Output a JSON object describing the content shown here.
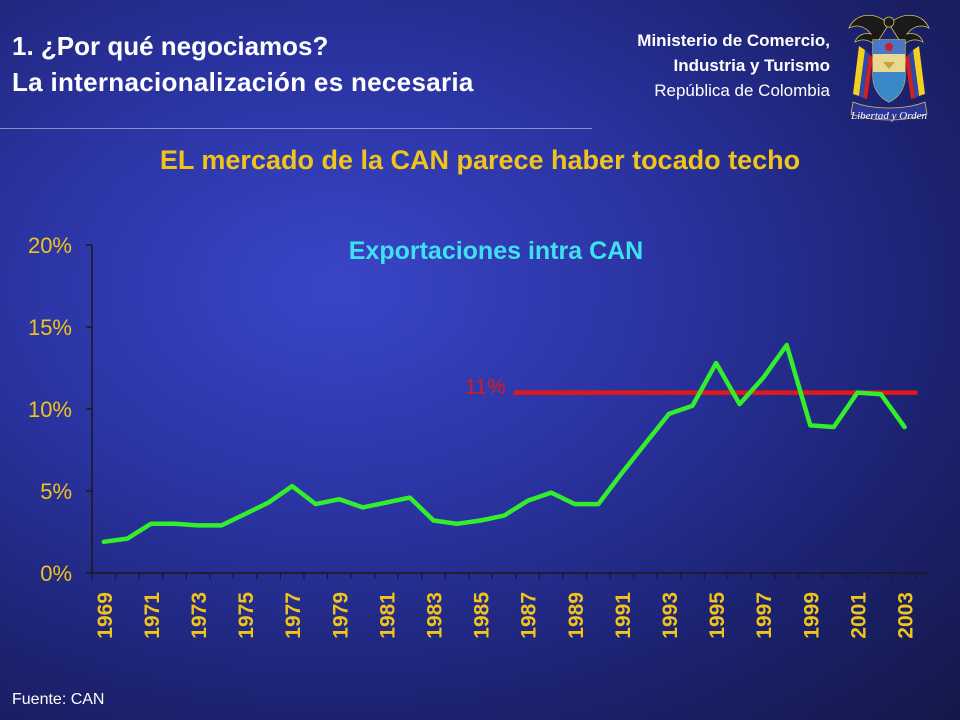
{
  "header": {
    "title_line1": "1. ¿Por qué negociamos?",
    "title_line2": "La internacionalización es necesaria",
    "ministry_line1": "Ministerio de Comercio,",
    "ministry_line2": "Industria y Turismo",
    "ministry_line3": "República de Colombia",
    "crest_motto": "Libertad y Orden"
  },
  "subtitle": "EL mercado de la CAN parece haber tocado techo",
  "source": "Fuente: CAN",
  "colors": {
    "series": "#33ee2a",
    "reference_line": "#e01818",
    "subtitle": "#f0c41a",
    "chart_title": "#3fe0f2",
    "axis_labels": "#f0c41a"
  },
  "chart_data": {
    "type": "line",
    "title": "Exportaciones intra CAN",
    "xlabel": "",
    "ylabel": "",
    "x_tick_labels": [
      "1969",
      "1971",
      "1973",
      "1975",
      "1977",
      "1979",
      "1981",
      "1983",
      "1985",
      "1987",
      "1989",
      "1991",
      "1993",
      "1995",
      "1997",
      "1999",
      "2001",
      "2003"
    ],
    "y_tick_labels": [
      "0%",
      "5%",
      "10%",
      "15%",
      "20%"
    ],
    "ylim": [
      0,
      20
    ],
    "grid": false,
    "series": [
      {
        "x": [
          1969,
          1970,
          1971,
          1972,
          1973,
          1974,
          1975,
          1976,
          1977,
          1978,
          1979,
          1980,
          1981,
          1982,
          1983,
          1984,
          1985,
          1986,
          1987,
          1988,
          1989,
          1990,
          1991,
          1992,
          1993,
          1994,
          1995,
          1996,
          1997,
          1998,
          1999,
          2000,
          2001,
          2002,
          2003
        ],
        "values": [
          1.9,
          2.1,
          3.0,
          3.0,
          2.9,
          2.9,
          3.6,
          4.3,
          5.3,
          4.2,
          4.5,
          4.0,
          4.3,
          4.6,
          3.2,
          3.0,
          3.2,
          3.5,
          4.4,
          4.9,
          4.2,
          4.2,
          6.1,
          7.9,
          9.7,
          10.2,
          12.8,
          10.3,
          11.9,
          13.9,
          9.0,
          8.9,
          11.0,
          10.9,
          8.9
        ]
      }
    ],
    "annotations": [
      {
        "label": "11%",
        "value": 11,
        "x_start": 1987,
        "x_end": 2003
      }
    ]
  }
}
